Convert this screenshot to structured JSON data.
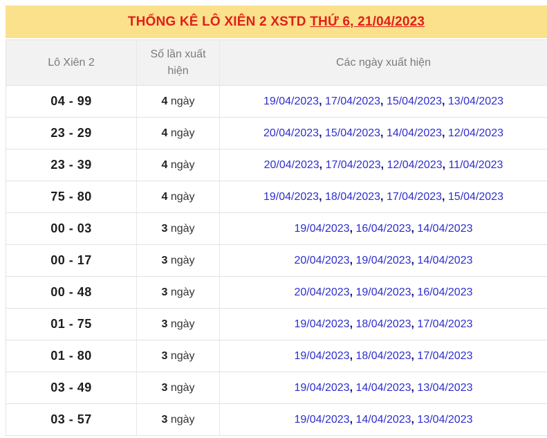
{
  "header": {
    "title_main": "THỐNG KÊ LÔ XIÊN 2 XSTD",
    "title_date": "THỨ 6, 21/04/2023",
    "background_color": "#FBE18C",
    "text_color": "#E0201A"
  },
  "colors": {
    "date_link": "#2E2ECC",
    "date_comma": "#0A0A78",
    "header_row_bg": "#f2f2f2",
    "border": "#e2e2e2"
  },
  "table": {
    "columns": [
      "Lô Xiên 2",
      "Số lần xuất hiện",
      "Các ngày xuất hiện"
    ],
    "count_unit": "ngày",
    "rows": [
      {
        "pair": "04 - 99",
        "count": "4",
        "dates": [
          "19/04/2023",
          "17/04/2023",
          "15/04/2023",
          "13/04/2023"
        ]
      },
      {
        "pair": "23 - 29",
        "count": "4",
        "dates": [
          "20/04/2023",
          "15/04/2023",
          "14/04/2023",
          "12/04/2023"
        ]
      },
      {
        "pair": "23 - 39",
        "count": "4",
        "dates": [
          "20/04/2023",
          "17/04/2023",
          "12/04/2023",
          "11/04/2023"
        ]
      },
      {
        "pair": "75 - 80",
        "count": "4",
        "dates": [
          "19/04/2023",
          "18/04/2023",
          "17/04/2023",
          "15/04/2023"
        ]
      },
      {
        "pair": "00 - 03",
        "count": "3",
        "dates": [
          "19/04/2023",
          "16/04/2023",
          "14/04/2023"
        ]
      },
      {
        "pair": "00 - 17",
        "count": "3",
        "dates": [
          "20/04/2023",
          "19/04/2023",
          "14/04/2023"
        ]
      },
      {
        "pair": "00 - 48",
        "count": "3",
        "dates": [
          "20/04/2023",
          "19/04/2023",
          "16/04/2023"
        ]
      },
      {
        "pair": "01 - 75",
        "count": "3",
        "dates": [
          "19/04/2023",
          "18/04/2023",
          "17/04/2023"
        ]
      },
      {
        "pair": "01 - 80",
        "count": "3",
        "dates": [
          "19/04/2023",
          "18/04/2023",
          "17/04/2023"
        ]
      },
      {
        "pair": "03 - 49",
        "count": "3",
        "dates": [
          "19/04/2023",
          "14/04/2023",
          "13/04/2023"
        ]
      },
      {
        "pair": "03 - 57",
        "count": "3",
        "dates": [
          "19/04/2023",
          "14/04/2023",
          "13/04/2023"
        ]
      }
    ]
  }
}
